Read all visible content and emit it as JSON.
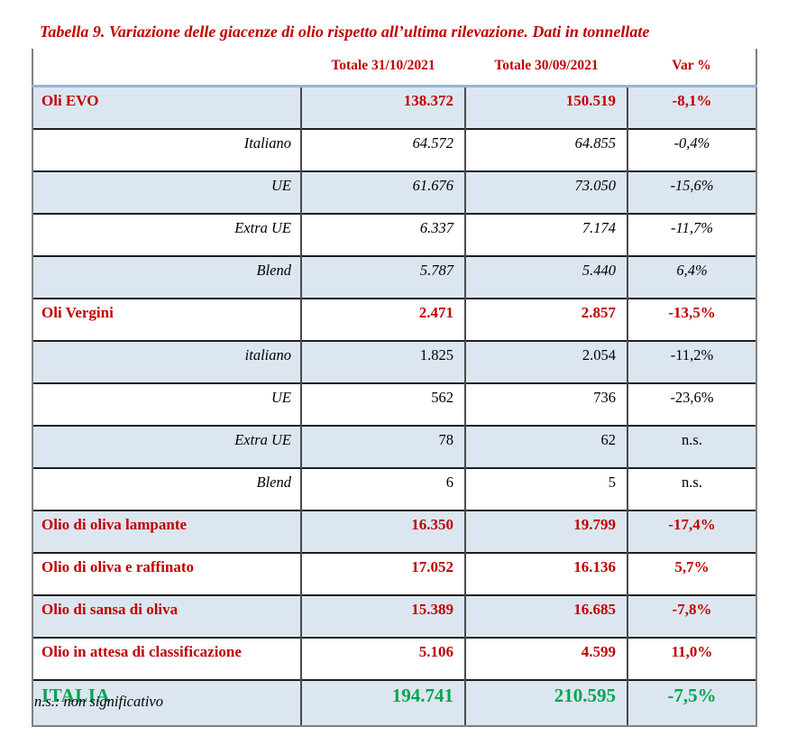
{
  "title": "Tabella 9. Variazione delle giacenze di olio rispetto all’ultima rilevazione. Dati in tonnellate",
  "footnote": "n.s.: non significativo",
  "colors": {
    "accent_red": "#C00000",
    "total_green": "#00A550",
    "row_band_blue": "#DCE6F1",
    "header_rule_blue": "#95B3D7"
  },
  "table": {
    "columns": [
      "",
      "Totale 31/10/2021",
      "Totale 30/09/2021",
      "Var %"
    ],
    "rows": [
      {
        "label": "Oli EVO",
        "v1": "138.372",
        "v2": "150.519",
        "var": "-8,1%",
        "style": "category"
      },
      {
        "label": "Italiano",
        "v1": "64.572",
        "v2": "64.855",
        "var": "-0,4%",
        "style": "sub-italic"
      },
      {
        "label": "UE",
        "v1": "61.676",
        "v2": "73.050",
        "var": "-15,6%",
        "style": "sub-italic"
      },
      {
        "label": "Extra UE",
        "v1": "6.337",
        "v2": "7.174",
        "var": "-11,7%",
        "style": "sub-italic"
      },
      {
        "label": "Blend",
        "v1": "5.787",
        "v2": "5.440",
        "var": "6,4%",
        "style": "sub-italic"
      },
      {
        "label": "Oli Vergini",
        "v1": "2.471",
        "v2": "2.857",
        "var": "-13,5%",
        "style": "category"
      },
      {
        "label": "italiano",
        "v1": "1.825",
        "v2": "2.054",
        "var": "-11,2%",
        "style": "sub-upright"
      },
      {
        "label": "UE",
        "v1": "562",
        "v2": "736",
        "var": "-23,6%",
        "style": "sub-upright"
      },
      {
        "label": "Extra UE",
        "v1": "78",
        "v2": "62",
        "var": "n.s.",
        "style": "sub-upright"
      },
      {
        "label": "Blend",
        "v1": "6",
        "v2": "5",
        "var": "n.s.",
        "style": "sub-upright"
      },
      {
        "label": "Olio di oliva lampante",
        "v1": "16.350",
        "v2": "19.799",
        "var": "-17,4%",
        "style": "category"
      },
      {
        "label": "Olio di oliva e raffinato",
        "v1": "17.052",
        "v2": "16.136",
        "var": "5,7%",
        "style": "category"
      },
      {
        "label": "Olio di sansa di oliva",
        "v1": "15.389",
        "v2": "16.685",
        "var": "-7,8%",
        "style": "category"
      },
      {
        "label": "Olio in attesa di classificazione",
        "v1": "5.106",
        "v2": "4.599",
        "var": "11,0%",
        "style": "category"
      },
      {
        "label": "ITALIA",
        "v1": "194.741",
        "v2": "210.595",
        "var": "-7,5%",
        "style": "total"
      }
    ]
  }
}
